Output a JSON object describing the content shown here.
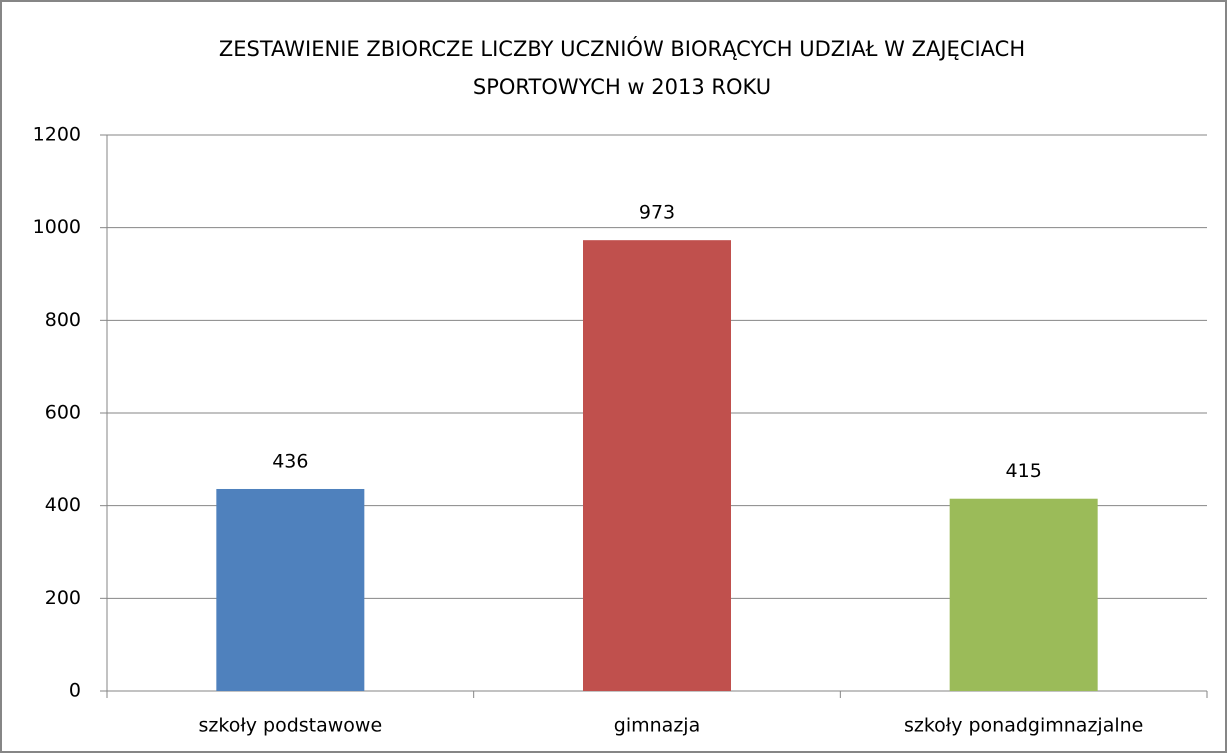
{
  "chart_data": {
    "type": "bar",
    "title": [
      "ZESTAWIENIE ZBIORCZE LICZBY UCZNIÓW BIORĄCYCH UDZIAŁ W ZAJĘCIACH",
      "SPORTOWYCH  w 2013 ROKU"
    ],
    "categories": [
      "szkoły podstawowe",
      "gimnazja",
      "szkoły ponadgimnazjalne"
    ],
    "values": [
      436,
      973,
      415
    ],
    "colors": [
      "#4f81bd",
      "#c0504d",
      "#9bbb59"
    ],
    "ylim": [
      0,
      1200
    ],
    "yticks": [
      0,
      200,
      400,
      600,
      800,
      1000,
      1200
    ],
    "grid": true,
    "data_labels": true
  }
}
